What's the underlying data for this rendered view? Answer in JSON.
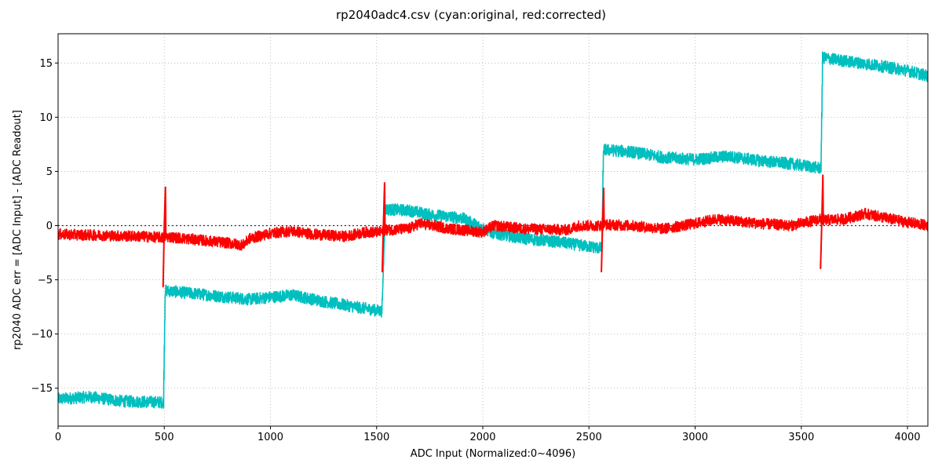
{
  "chart_data": {
    "type": "line",
    "title": "rp2040adc4.csv (cyan:original, red:corrected)",
    "xlabel": "ADC Input (Normalized:0~4096)",
    "ylabel": "rp2040 ADC err = [ADC Input] - [ADC Readout]",
    "xlim": [
      0,
      4096
    ],
    "ylim": [
      -18.5,
      17.7
    ],
    "xticks": [
      0,
      500,
      1000,
      1500,
      2000,
      2500,
      3000,
      3500,
      4000
    ],
    "xtick_labels": [
      "0",
      "500",
      "1000",
      "1500",
      "2000",
      "2500",
      "3000",
      "3500",
      "4000"
    ],
    "yticks": [
      -15,
      -10,
      -5,
      0,
      5,
      10,
      15
    ],
    "ytick_labels": [
      "−15",
      "−10",
      "−5",
      "0",
      "5",
      "10",
      "15"
    ],
    "grid": true,
    "zero_line": {
      "y": 0,
      "style": "dotted",
      "color": "#333333"
    },
    "series": [
      {
        "color": "#00bfbf",
        "noise": 0.55,
        "points": [
          [
            0,
            -16.0
          ],
          [
            150,
            -15.8
          ],
          [
            300,
            -16.2
          ],
          [
            496,
            -16.3
          ],
          [
            504,
            -6.0
          ],
          [
            700,
            -6.4
          ],
          [
            900,
            -6.8
          ],
          [
            1000,
            -6.6
          ],
          [
            1100,
            -6.4
          ],
          [
            1250,
            -7.0
          ],
          [
            1400,
            -7.5
          ],
          [
            1525,
            -7.9
          ],
          [
            1540,
            1.5
          ],
          [
            1650,
            1.4
          ],
          [
            1750,
            1.0
          ],
          [
            1900,
            0.7
          ],
          [
            2050,
            -0.7
          ],
          [
            2200,
            -1.2
          ],
          [
            2350,
            -1.5
          ],
          [
            2560,
            -2.1
          ],
          [
            2568,
            7.0
          ],
          [
            2700,
            6.8
          ],
          [
            2850,
            6.3
          ],
          [
            3000,
            6.1
          ],
          [
            3150,
            6.4
          ],
          [
            3300,
            6.0
          ],
          [
            3450,
            5.7
          ],
          [
            3592,
            5.3
          ],
          [
            3600,
            15.5
          ],
          [
            3700,
            15.2
          ],
          [
            3850,
            14.8
          ],
          [
            4000,
            14.3
          ],
          [
            4096,
            13.8
          ]
        ]
      },
      {
        "color": "#ff0000",
        "noise": 0.5,
        "points": [
          [
            0,
            -0.8
          ],
          [
            200,
            -0.9
          ],
          [
            400,
            -1.0
          ],
          [
            496,
            -1.1
          ],
          [
            500,
            -1.0
          ],
          [
            600,
            -1.2
          ],
          [
            700,
            -1.4
          ],
          [
            800,
            -1.6
          ],
          [
            870,
            -1.8
          ],
          [
            900,
            -1.2
          ],
          [
            1000,
            -0.7
          ],
          [
            1100,
            -0.5
          ],
          [
            1200,
            -0.8
          ],
          [
            1350,
            -1.0
          ],
          [
            1450,
            -0.6
          ],
          [
            1525,
            -0.6
          ],
          [
            1540,
            -0.4
          ],
          [
            1650,
            -0.3
          ],
          [
            1700,
            0.2
          ],
          [
            1850,
            -0.3
          ],
          [
            2000,
            -0.6
          ],
          [
            2050,
            0.0
          ],
          [
            2200,
            -0.3
          ],
          [
            2400,
            -0.4
          ],
          [
            2450,
            0.0
          ],
          [
            2560,
            0.0
          ],
          [
            2570,
            0.1
          ],
          [
            2700,
            0.0
          ],
          [
            2850,
            -0.3
          ],
          [
            3000,
            0.2
          ],
          [
            3100,
            0.6
          ],
          [
            3300,
            0.2
          ],
          [
            3450,
            0.0
          ],
          [
            3592,
            0.6
          ],
          [
            3600,
            0.5
          ],
          [
            3700,
            0.6
          ],
          [
            3800,
            1.1
          ],
          [
            4000,
            0.3
          ],
          [
            4096,
            0.0
          ]
        ],
        "spikes": [
          {
            "x": 500,
            "min": -5.7,
            "max": 3.6
          },
          {
            "x": 1532,
            "min": -4.3,
            "max": 4.0
          },
          {
            "x": 2564,
            "min": -4.3,
            "max": 3.5
          },
          {
            "x": 3596,
            "min": -4.0,
            "max": 4.7
          }
        ]
      }
    ]
  }
}
